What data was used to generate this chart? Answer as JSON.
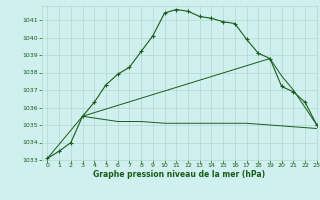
{
  "bg_color": "#cff0ee",
  "grid_color": "#b0d8cc",
  "line_color": "#1a5c1a",
  "xlabel": "Graphe pression niveau de la mer (hPa)",
  "xlabel_color": "#1a5c1a",
  "ylim": [
    1033,
    1041.8
  ],
  "xlim": [
    -0.5,
    23
  ],
  "yticks": [
    1033,
    1034,
    1035,
    1036,
    1037,
    1038,
    1039,
    1040,
    1041
  ],
  "xticks": [
    0,
    1,
    2,
    3,
    4,
    5,
    6,
    7,
    8,
    9,
    10,
    11,
    12,
    13,
    14,
    15,
    16,
    17,
    18,
    19,
    20,
    21,
    22,
    23
  ],
  "series1_x": [
    0,
    1,
    2,
    3,
    4,
    5,
    6,
    7,
    8,
    9,
    10,
    11,
    12,
    13,
    14,
    15,
    16,
    17,
    18,
    19,
    20,
    21,
    22,
    23
  ],
  "series1_y": [
    1033.1,
    1033.5,
    1034.0,
    1035.5,
    1036.3,
    1037.3,
    1037.9,
    1038.3,
    1039.2,
    1040.1,
    1041.4,
    1041.6,
    1041.5,
    1041.2,
    1041.1,
    1040.9,
    1040.8,
    1039.9,
    1039.1,
    1038.8,
    1037.2,
    1036.9,
    1036.3,
    1035.0
  ],
  "series2_x": [
    3,
    4,
    5,
    6,
    7,
    8,
    9,
    10,
    11,
    12,
    13,
    14,
    15,
    16,
    17,
    18,
    19,
    20,
    21,
    22,
    23
  ],
  "series2_y": [
    1035.5,
    1035.4,
    1035.3,
    1035.2,
    1035.2,
    1035.2,
    1035.15,
    1035.1,
    1035.1,
    1035.1,
    1035.1,
    1035.1,
    1035.1,
    1035.1,
    1035.1,
    1035.05,
    1035.0,
    1034.95,
    1034.9,
    1034.85,
    1034.8
  ],
  "series3_x": [
    0,
    3,
    19,
    20,
    21,
    22,
    23
  ],
  "series3_y": [
    1033.1,
    1035.5,
    1038.8,
    1037.8,
    1037.0,
    1036.0,
    1035.0
  ]
}
